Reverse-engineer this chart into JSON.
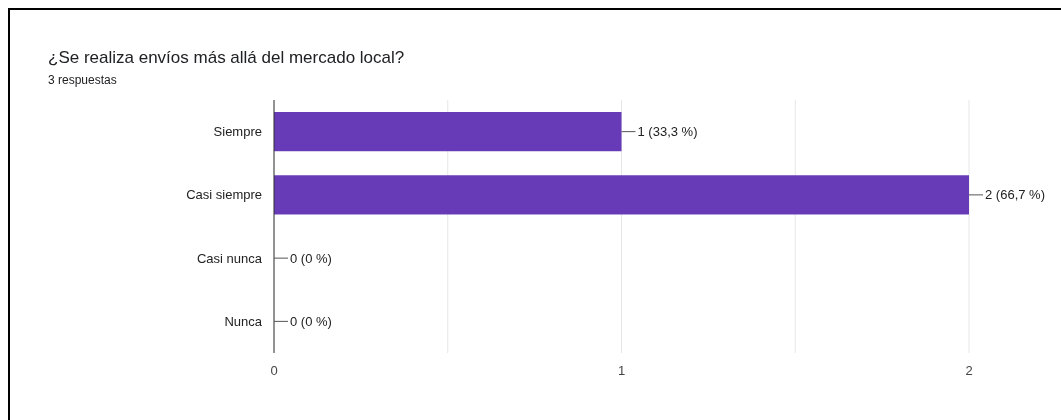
{
  "chart_data": {
    "type": "bar",
    "orientation": "horizontal",
    "title": "¿Se realiza envíos más allá del mercado local?",
    "subtitle": "3 respuestas",
    "categories": [
      "Siempre",
      "Casi siempre",
      "Casi nunca",
      "Nunca"
    ],
    "values": [
      1,
      2,
      0,
      0
    ],
    "color": "#673ab7",
    "value_labels": [
      "1 (33,3 %)",
      "2 (66,7 %)",
      "0 (0 %)",
      "0 (0 %)"
    ],
    "xlim": [
      0,
      2
    ],
    "xticks": [
      0,
      {
        "value": 0.5,
        "label": null
      },
      1,
      {
        "value": 1.5,
        "label": null
      },
      2
    ],
    "grid": "x"
  }
}
